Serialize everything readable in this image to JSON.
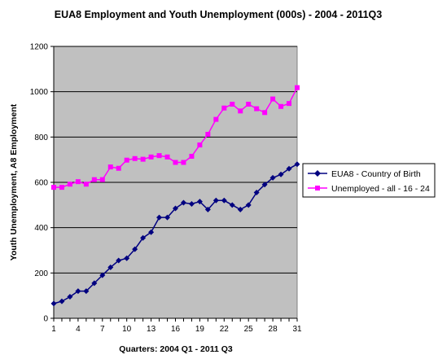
{
  "chart_data": {
    "type": "line",
    "title": "EUA8 Employment and Youth Unemployment (000s) - 2004 - 2011Q3",
    "xlabel": "Quarters: 2004 Q1 - 2011 Q3",
    "ylabel": "Youth Unemployment, A8 Employment",
    "ylim": [
      0,
      1200
    ],
    "yticks": [
      0,
      200,
      400,
      600,
      800,
      1000,
      1200
    ],
    "xlim": [
      1,
      31
    ],
    "xticks": [
      1,
      4,
      7,
      10,
      13,
      16,
      19,
      22,
      25,
      28,
      31
    ],
    "grid": "horizontal",
    "legend_position": "right",
    "plot_background": "#c0c0c0",
    "series": [
      {
        "name": "EUA8 - Country of Birth",
        "color": "#000080",
        "marker": "diamond",
        "x": [
          1,
          2,
          3,
          4,
          5,
          6,
          7,
          8,
          9,
          10,
          11,
          12,
          13,
          14,
          15,
          16,
          17,
          18,
          19,
          20,
          21,
          22,
          23,
          24,
          25,
          26,
          27,
          28,
          29,
          30,
          31
        ],
        "values": [
          65,
          75,
          95,
          120,
          120,
          155,
          190,
          225,
          255,
          265,
          305,
          355,
          380,
          445,
          445,
          485,
          510,
          505,
          515,
          480,
          520,
          520,
          500,
          480,
          500,
          555,
          590,
          620,
          635,
          660,
          680
        ]
      },
      {
        "name": "Unemployed - all - 16 - 24",
        "color": "#ff00ff",
        "marker": "square",
        "x": [
          1,
          2,
          3,
          4,
          5,
          6,
          7,
          8,
          9,
          10,
          11,
          12,
          13,
          14,
          15,
          16,
          17,
          18,
          19,
          20,
          21,
          22,
          23,
          24,
          25,
          26,
          27,
          28,
          29,
          30,
          31
        ],
        "values": [
          578,
          578,
          592,
          603,
          592,
          612,
          612,
          668,
          662,
          698,
          705,
          702,
          712,
          718,
          712,
          688,
          688,
          715,
          765,
          812,
          878,
          928,
          945,
          915,
          945,
          925,
          908,
          968,
          935,
          948,
          1018
        ]
      }
    ]
  }
}
